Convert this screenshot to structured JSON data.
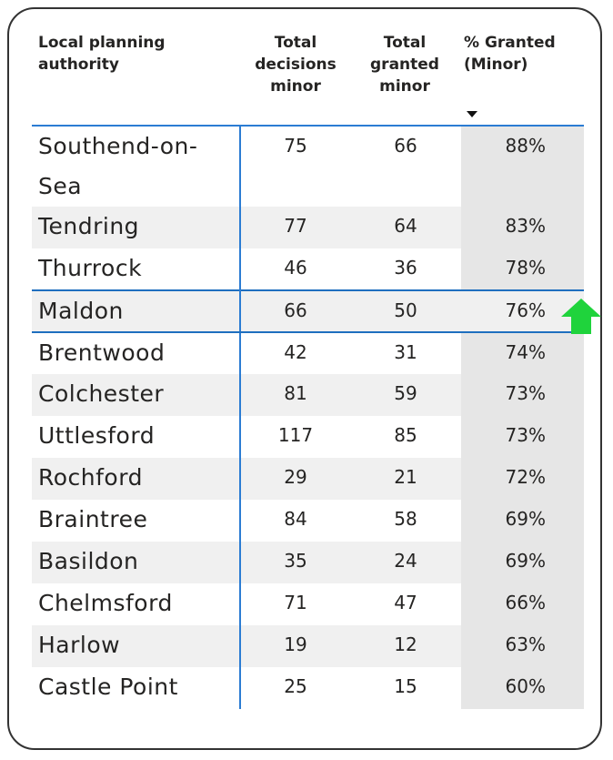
{
  "table": {
    "columns": [
      "Local planning authority",
      "Total decisions minor",
      "Total granted minor",
      "% Granted (Minor)"
    ],
    "rows": [
      [
        "Southend-on-Sea",
        "75",
        "66",
        "88%"
      ],
      [
        "Tendring",
        "77",
        "64",
        "83%"
      ],
      [
        "Thurrock",
        "46",
        "36",
        "78%"
      ],
      [
        "Maldon",
        "66",
        "50",
        "76%"
      ],
      [
        "Brentwood",
        "42",
        "31",
        "74%"
      ],
      [
        "Colchester",
        "81",
        "59",
        "73%"
      ],
      [
        "Uttlesford",
        "117",
        "85",
        "73%"
      ],
      [
        "Rochford",
        "29",
        "21",
        "72%"
      ],
      [
        "Braintree",
        "84",
        "58",
        "69%"
      ],
      [
        "Basildon",
        "35",
        "24",
        "69%"
      ],
      [
        "Chelmsford",
        "71",
        "47",
        "66%"
      ],
      [
        "Harlow",
        "19",
        "12",
        "63%"
      ],
      [
        "Castle Point",
        "25",
        "15",
        "60%"
      ]
    ]
  }
}
